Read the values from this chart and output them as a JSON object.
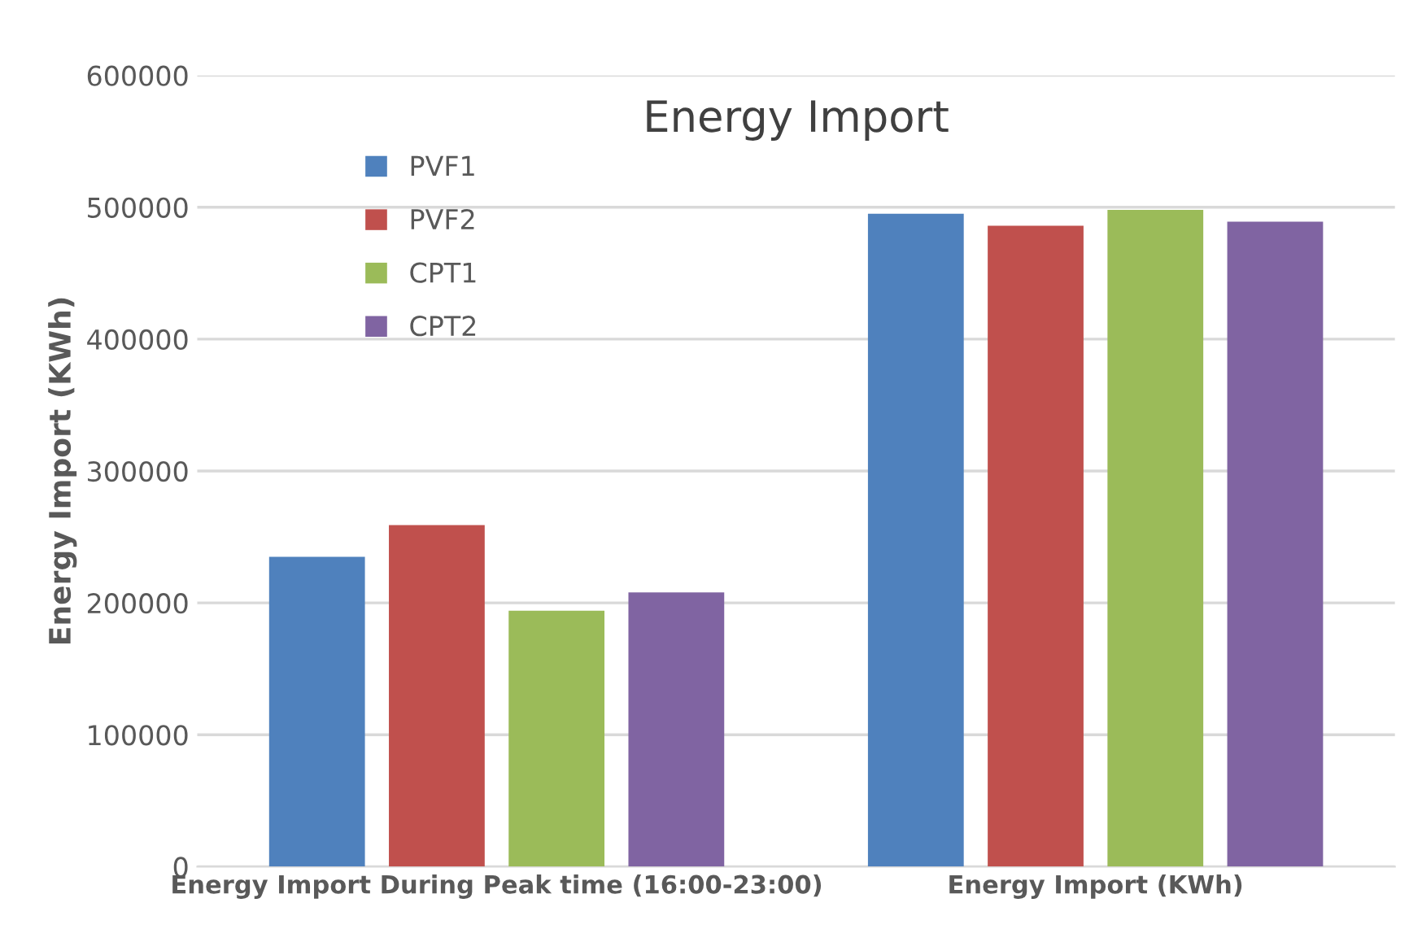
{
  "chart_data": {
    "type": "bar",
    "title": "Energy Import",
    "ylabel": "Energy Import (KWh)",
    "categories": [
      "Energy Import During Peak time (16:00-23:00)",
      "Energy Import (KWh)"
    ],
    "series": [
      {
        "name": "PVF1",
        "color": "#4f81bd",
        "values": [
          235000,
          495000
        ]
      },
      {
        "name": "PVF2",
        "color": "#c0504d",
        "values": [
          259000,
          486000
        ]
      },
      {
        "name": "CPT1",
        "color": "#9bbb59",
        "values": [
          194000,
          498000
        ]
      },
      {
        "name": "CPT2",
        "color": "#8064a2",
        "values": [
          208000,
          489000
        ]
      }
    ],
    "ylim": [
      0,
      600000
    ],
    "yticks": [
      0,
      100000,
      200000,
      300000,
      400000,
      500000,
      600000
    ],
    "grid": "y",
    "legend": "top left"
  }
}
